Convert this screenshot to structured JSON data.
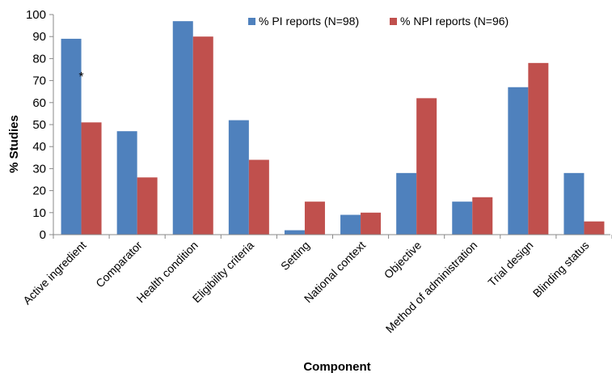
{
  "chart_data": {
    "type": "bar",
    "title": "",
    "xlabel": "Component",
    "ylabel": "% Studies",
    "ylim": [
      0,
      100
    ],
    "yticks": [
      0,
      10,
      20,
      30,
      40,
      50,
      60,
      70,
      80,
      90,
      100
    ],
    "grid": false,
    "legend_position": "top-right",
    "categories": [
      "Active ingredient",
      "Comparator",
      "Health condition",
      "Eligibility criteria",
      "Setting",
      "National context",
      "Objective",
      "Method of administration",
      "Trial design",
      "Blinding status"
    ],
    "series": [
      {
        "name": "% PI reports (N=98)",
        "color": "#4F81BD",
        "values": [
          89,
          47,
          97,
          52,
          2,
          9,
          28,
          15,
          67,
          28
        ]
      },
      {
        "name": "% NPI reports (N=96)",
        "color": "#C0504D",
        "values": [
          51,
          26,
          90,
          34,
          15,
          10,
          62,
          17,
          78,
          6
        ]
      }
    ],
    "annotations": [
      {
        "text": "*",
        "category": "Active ingredient",
        "y": 75
      }
    ]
  }
}
